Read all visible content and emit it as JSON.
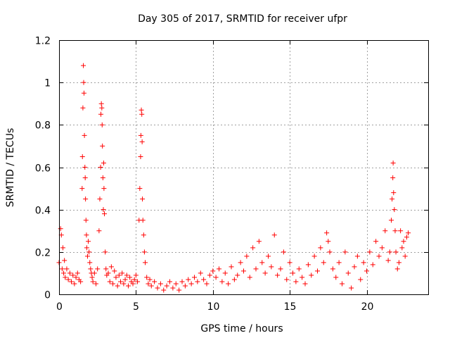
{
  "chart_data": {
    "type": "scatter",
    "title": "Day 305 of 2017, SRMTID for receiver ufpr",
    "xlabel": "GPS time / hours",
    "ylabel": "SRMTID / TECUs",
    "xlim": [
      0,
      24
    ],
    "ylim": [
      0,
      1.2
    ],
    "xticks": [
      0,
      5,
      10,
      15,
      20
    ],
    "xtick_labels": [
      "0",
      "5",
      "10",
      "15",
      "20"
    ],
    "yticks": [
      0,
      0.2,
      0.4,
      0.6,
      0.8,
      1.0,
      1.2
    ],
    "ytick_labels": [
      "0",
      "0.2",
      "0.4",
      "0.6",
      "0.8",
      "1",
      "1.2"
    ],
    "grid": true,
    "marker": "+",
    "series": [
      {
        "name": "SRMTID",
        "color": "#ff0000",
        "x": [
          0.0,
          0.1,
          0.15,
          0.2,
          0.25,
          0.3,
          0.35,
          0.4,
          0.5,
          0.6,
          0.7,
          0.8,
          0.9,
          1.0,
          1.1,
          1.2,
          1.3,
          1.4,
          1.5,
          1.52,
          1.55,
          1.58,
          1.6,
          1.62,
          1.65,
          1.68,
          1.7,
          1.72,
          1.75,
          1.78,
          1.8,
          1.85,
          1.9,
          1.95,
          2.0,
          2.05,
          2.1,
          2.15,
          2.2,
          2.3,
          2.4,
          2.5,
          2.6,
          2.65,
          2.7,
          2.72,
          2.75,
          2.78,
          2.8,
          2.82,
          2.85,
          2.88,
          2.9,
          2.92,
          2.95,
          3.0,
          3.05,
          3.1,
          3.2,
          3.3,
          3.4,
          3.5,
          3.6,
          3.7,
          3.8,
          3.9,
          4.0,
          4.1,
          4.2,
          4.3,
          4.4,
          4.5,
          4.6,
          4.7,
          4.8,
          4.9,
          5.0,
          5.1,
          5.2,
          5.25,
          5.3,
          5.32,
          5.35,
          5.38,
          5.4,
          5.42,
          5.45,
          5.5,
          5.55,
          5.6,
          5.7,
          5.8,
          5.9,
          6.0,
          6.2,
          6.4,
          6.6,
          6.8,
          7.0,
          7.2,
          7.4,
          7.6,
          7.8,
          8.0,
          8.2,
          8.4,
          8.6,
          8.8,
          9.0,
          9.2,
          9.4,
          9.6,
          9.8,
          10.0,
          10.2,
          10.4,
          10.6,
          10.8,
          11.0,
          11.2,
          11.4,
          11.6,
          11.8,
          12.0,
          12.2,
          12.4,
          12.6,
          12.8,
          13.0,
          13.2,
          13.4,
          13.6,
          13.8,
          14.0,
          14.2,
          14.4,
          14.6,
          14.8,
          15.0,
          15.2,
          15.4,
          15.6,
          15.8,
          16.0,
          16.2,
          16.4,
          16.6,
          16.8,
          17.0,
          17.2,
          17.4,
          17.5,
          17.6,
          17.8,
          18.0,
          18.2,
          18.4,
          18.6,
          18.8,
          19.0,
          19.2,
          19.4,
          19.6,
          19.8,
          20.0,
          20.2,
          20.4,
          20.6,
          20.8,
          21.0,
          21.2,
          21.4,
          21.5,
          21.6,
          21.65,
          21.7,
          21.72,
          21.75,
          21.8,
          21.85,
          21.9,
          22.0,
          22.1,
          22.2,
          22.3,
          22.4,
          22.5,
          22.6,
          22.7
        ],
        "y": [
          0.15,
          0.31,
          0.28,
          0.12,
          0.22,
          0.1,
          0.16,
          0.08,
          0.12,
          0.07,
          0.1,
          0.06,
          0.09,
          0.05,
          0.08,
          0.1,
          0.07,
          0.06,
          0.5,
          0.65,
          0.88,
          1.08,
          1.0,
          0.95,
          0.75,
          0.6,
          0.55,
          0.45,
          0.35,
          0.28,
          0.22,
          0.18,
          0.25,
          0.2,
          0.15,
          0.12,
          0.1,
          0.08,
          0.06,
          0.1,
          0.05,
          0.12,
          0.3,
          0.45,
          0.6,
          0.85,
          0.9,
          0.88,
          0.8,
          0.7,
          0.55,
          0.4,
          0.62,
          0.5,
          0.38,
          0.2,
          0.12,
          0.09,
          0.1,
          0.06,
          0.13,
          0.05,
          0.11,
          0.08,
          0.04,
          0.09,
          0.06,
          0.1,
          0.05,
          0.07,
          0.09,
          0.04,
          0.08,
          0.06,
          0.05,
          0.07,
          0.09,
          0.06,
          0.35,
          0.5,
          0.65,
          0.75,
          0.87,
          0.85,
          0.72,
          0.45,
          0.35,
          0.28,
          0.2,
          0.15,
          0.08,
          0.05,
          0.07,
          0.04,
          0.06,
          0.03,
          0.05,
          0.02,
          0.04,
          0.06,
          0.03,
          0.05,
          0.02,
          0.06,
          0.04,
          0.07,
          0.05,
          0.08,
          0.06,
          0.1,
          0.07,
          0.05,
          0.09,
          0.11,
          0.08,
          0.12,
          0.06,
          0.1,
          0.05,
          0.13,
          0.07,
          0.09,
          0.15,
          0.11,
          0.18,
          0.08,
          0.22,
          0.12,
          0.25,
          0.15,
          0.1,
          0.18,
          0.13,
          0.28,
          0.09,
          0.12,
          0.2,
          0.07,
          0.15,
          0.1,
          0.06,
          0.12,
          0.08,
          0.05,
          0.14,
          0.09,
          0.18,
          0.11,
          0.22,
          0.15,
          0.29,
          0.25,
          0.2,
          0.12,
          0.08,
          0.15,
          0.05,
          0.2,
          0.1,
          0.03,
          0.13,
          0.18,
          0.07,
          0.15,
          0.11,
          0.2,
          0.14,
          0.25,
          0.18,
          0.22,
          0.3,
          0.16,
          0.2,
          0.35,
          0.45,
          0.55,
          0.62,
          0.48,
          0.4,
          0.3,
          0.2,
          0.12,
          0.15,
          0.3,
          0.22,
          0.25,
          0.18,
          0.27,
          0.29
        ]
      }
    ]
  }
}
